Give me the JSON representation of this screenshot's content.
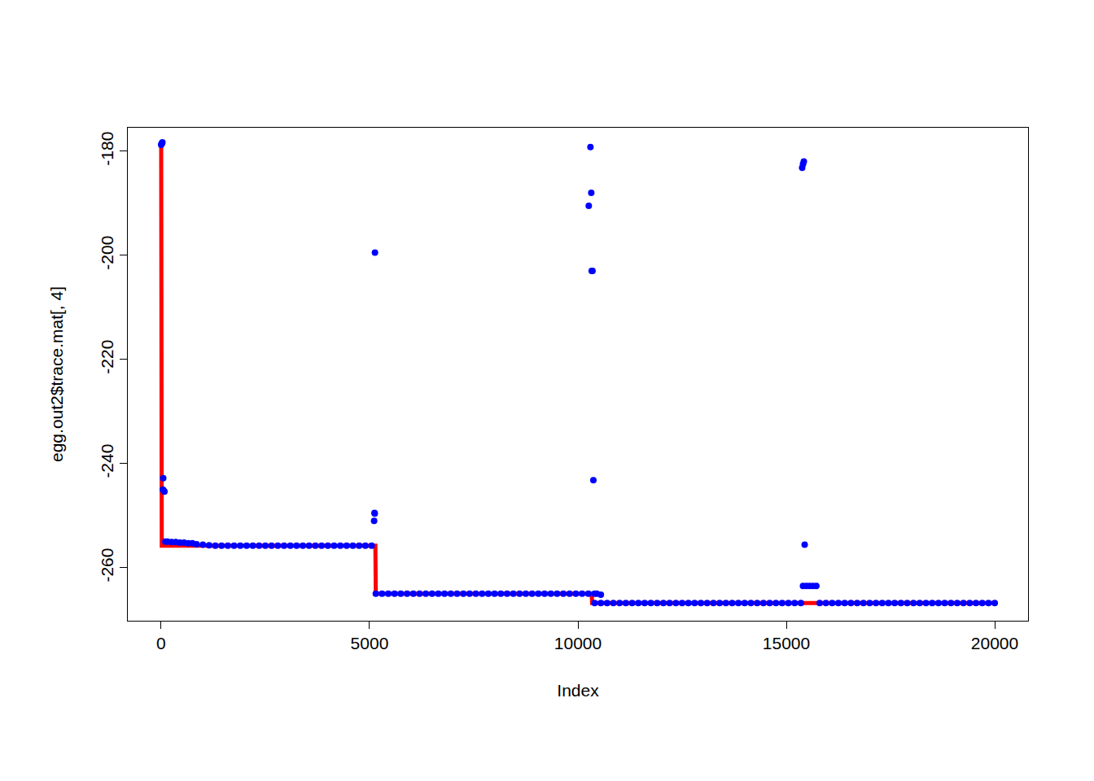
{
  "chart_data": {
    "type": "scatter",
    "x_label": "Index",
    "y_label": "egg.out2$trace.mat[, 4]",
    "xlim": [
      -800,
      20800
    ],
    "ylim": [
      -270.2,
      -175.5
    ],
    "xticks": [
      0,
      5000,
      10000,
      15000,
      20000
    ],
    "yticks": [
      -260,
      -240,
      -220,
      -200,
      -180
    ],
    "grid": false,
    "series": [
      {
        "type": "line",
        "color": "#ff0000",
        "line_style": "solid",
        "x": [
          1,
          15,
          5140,
          5150,
          10330,
          10340,
          20000
        ],
        "values": [
          -179,
          -255.8,
          -255.8,
          -265,
          -265,
          -266.8,
          -266.8
        ]
      },
      {
        "type": "scatter",
        "color": "#0000ff",
        "marker": "circle",
        "x": [
          1,
          10,
          20,
          30,
          40,
          50,
          60,
          80,
          100,
          150,
          250,
          350,
          450,
          550,
          650,
          750,
          850,
          1000,
          1150
        ],
        "values": [
          -178.8,
          -178.6,
          -178.5,
          -178.3,
          -245,
          -242.8,
          -245.2,
          -245.4,
          -255,
          -255,
          -255.1,
          -255.1,
          -255.2,
          -255.2,
          -255.3,
          -255.3,
          -255.5,
          -255.6,
          -255.7
        ]
      },
      {
        "type": "scatter",
        "color": "#0000ff",
        "marker": "circle",
        "x": [
          1300,
          1450,
          1600,
          1750,
          1900,
          2050,
          2200,
          2350,
          2500,
          2650,
          2800,
          2950,
          3100,
          3250,
          3400,
          3550,
          3700,
          3850,
          4000,
          4150,
          4300,
          4450,
          4600,
          4750,
          4900,
          5050
        ],
        "values": [
          -255.8,
          -255.8,
          -255.8,
          -255.8,
          -255.8,
          -255.8,
          -255.8,
          -255.8,
          -255.8,
          -255.8,
          -255.8,
          -255.8,
          -255.8,
          -255.8,
          -255.8,
          -255.8,
          -255.8,
          -255.8,
          -255.8,
          -255.8,
          -255.8,
          -255.8,
          -255.8,
          -255.8,
          -255.8,
          -255.8
        ]
      },
      {
        "type": "scatter",
        "color": "#0000ff",
        "marker": "circle",
        "x": [
          5110,
          5120,
          5125,
          5130
        ],
        "values": [
          -251,
          -249.5,
          -249.6,
          -199.5
        ]
      },
      {
        "type": "scatter",
        "color": "#0000ff",
        "marker": "circle",
        "x": [
          5150,
          5300,
          5450,
          5600,
          5750,
          5900,
          6050,
          6200,
          6350,
          6500,
          6650,
          6800,
          6950,
          7100,
          7250,
          7400,
          7550,
          7700,
          7850,
          8000,
          8150,
          8300,
          8450,
          8600,
          8750,
          8900,
          9050,
          9200,
          9350,
          9500,
          9650,
          9800,
          9950,
          10100,
          10250,
          10400,
          10450,
          10550
        ],
        "values": [
          -265,
          -265,
          -265,
          -265,
          -265,
          -265,
          -265,
          -265,
          -265,
          -265,
          -265,
          -265,
          -265,
          -265,
          -265,
          -265,
          -265,
          -265,
          -265,
          -265,
          -265,
          -265,
          -265,
          -265,
          -265,
          -265,
          -265,
          -265,
          -265,
          -265,
          -265,
          -265,
          -265,
          -265,
          -265,
          -265,
          -265,
          -265.2
        ]
      },
      {
        "type": "scatter",
        "color": "#0000ff",
        "marker": "circle",
        "x": [
          10260,
          10300,
          10320,
          10330,
          10350,
          10370
        ],
        "values": [
          -190.5,
          -179.2,
          -188,
          -203,
          -203,
          -243.2
        ]
      },
      {
        "type": "scatter",
        "color": "#0000ff",
        "marker": "circle",
        "x": [
          10400,
          10550,
          10700,
          10850,
          11000,
          11150,
          11300,
          11450,
          11600,
          11750,
          11900,
          12050,
          12200,
          12350,
          12500,
          12650,
          12800,
          12950,
          13100,
          13250,
          13400,
          13550,
          13700,
          13850,
          14000,
          14150,
          14300,
          14450,
          14600,
          14750,
          14900,
          15050,
          15200,
          15350
        ],
        "values": [
          -266.8,
          -266.8,
          -266.8,
          -266.8,
          -266.8,
          -266.8,
          -266.8,
          -266.8,
          -266.8,
          -266.8,
          -266.8,
          -266.8,
          -266.8,
          -266.8,
          -266.8,
          -266.8,
          -266.8,
          -266.8,
          -266.8,
          -266.8,
          -266.8,
          -266.8,
          -266.8,
          -266.8,
          -266.8,
          -266.8,
          -266.8,
          -266.8,
          -266.8,
          -266.8,
          -266.8,
          -266.8,
          -266.8,
          -266.8
        ]
      },
      {
        "type": "scatter",
        "color": "#0000ff",
        "marker": "circle",
        "x": [
          15380,
          15400,
          15420,
          15440
        ],
        "values": [
          -183.2,
          -182.5,
          -182,
          -255.6
        ]
      },
      {
        "type": "scatter",
        "color": "#0000ff",
        "marker": "circle",
        "x": [
          15400,
          15480,
          15560,
          15640,
          15720
        ],
        "values": [
          -263.5,
          -263.5,
          -263.5,
          -263.5,
          -263.5
        ]
      },
      {
        "type": "scatter",
        "color": "#0000ff",
        "marker": "circle",
        "x": [
          15800,
          15950,
          16100,
          16250,
          16400,
          16550,
          16700,
          16850,
          17000,
          17150,
          17300,
          17450,
          17600,
          17750,
          17900,
          18050,
          18200,
          18350,
          18500,
          18650,
          18800,
          18950,
          19100,
          19250,
          19400,
          19550,
          19700,
          19850,
          20000
        ],
        "values": [
          -266.8,
          -266.8,
          -266.8,
          -266.8,
          -266.8,
          -266.8,
          -266.8,
          -266.8,
          -266.8,
          -266.8,
          -266.8,
          -266.8,
          -266.8,
          -266.8,
          -266.8,
          -266.8,
          -266.8,
          -266.8,
          -266.8,
          -266.8,
          -266.8,
          -266.8,
          -266.8,
          -266.8,
          -266.8,
          -266.8,
          -266.8,
          -266.8,
          -266.8
        ]
      }
    ]
  }
}
